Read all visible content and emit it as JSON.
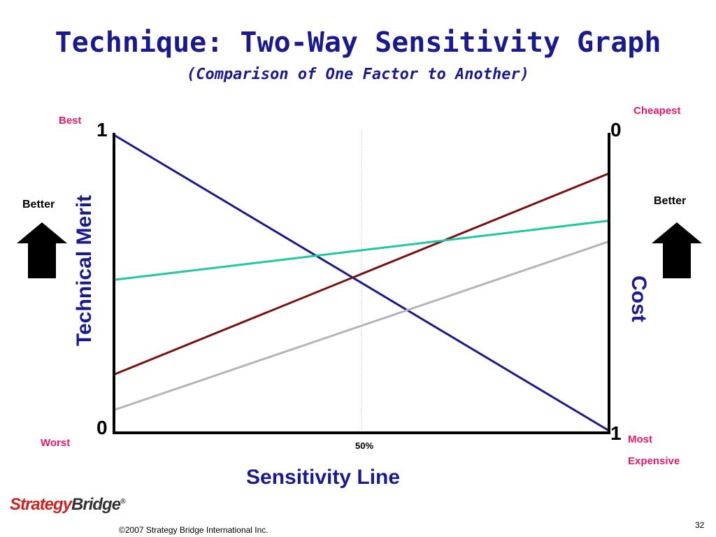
{
  "slide": {
    "title": "Technique: Two-Way Sensitivity Graph",
    "subtitle": "(Comparison of One Factor to Another)",
    "footer": "©2007 Strategy Bridge International Inc.",
    "page_number": "32",
    "logo": {
      "part1": "Strategy",
      "part2": "Bridge",
      "mark": "®"
    }
  },
  "labels": {
    "best": "Best",
    "worst": "Worst",
    "cheapest": "Cheapest",
    "most": "Most",
    "expensive": "Expensive",
    "better_left": "Better",
    "better_right": "Better",
    "left_top": "1",
    "left_bottom": "0",
    "right_top": "0",
    "right_bottom": "1",
    "midpoint": "50%"
  },
  "chart_data": {
    "type": "line",
    "xlabel": "Sensitivity Line",
    "ylabel": "Technical Merit",
    "y2label": "Cost",
    "x": [
      0,
      1
    ],
    "xlim": [
      0,
      1
    ],
    "ylim": [
      0,
      1
    ],
    "reference_line_x": 0.5,
    "series": [
      {
        "values": [
          1.0,
          0.0
        ],
        "color": "#1a1a8c"
      },
      {
        "values": [
          0.19,
          0.87
        ],
        "color": "#7a1010"
      },
      {
        "values": [
          0.51,
          0.71
        ],
        "color": "#1ec8a0"
      },
      {
        "values": [
          0.07,
          0.64
        ],
        "color": "#b4b4b4"
      }
    ],
    "grid": false,
    "legend": "none"
  },
  "colors": {
    "title": "#1a1a8c",
    "accent_pink": "#e6196a",
    "logo_red": "#cc2222",
    "logo_dark": "#333333"
  }
}
